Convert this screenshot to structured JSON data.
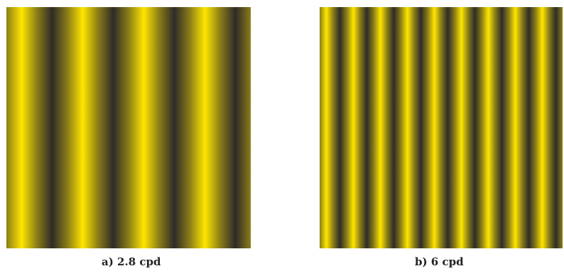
{
  "panels": [
    {
      "caption": "a) 2.8 cpd",
      "cycles": 4,
      "colors": {
        "light": "#ffe600",
        "dark": "#2e2b28"
      }
    },
    {
      "caption": "b) 6 cpd",
      "cycles": 9,
      "colors": {
        "light": "#ffe600",
        "dark": "#2e2b28"
      }
    }
  ]
}
